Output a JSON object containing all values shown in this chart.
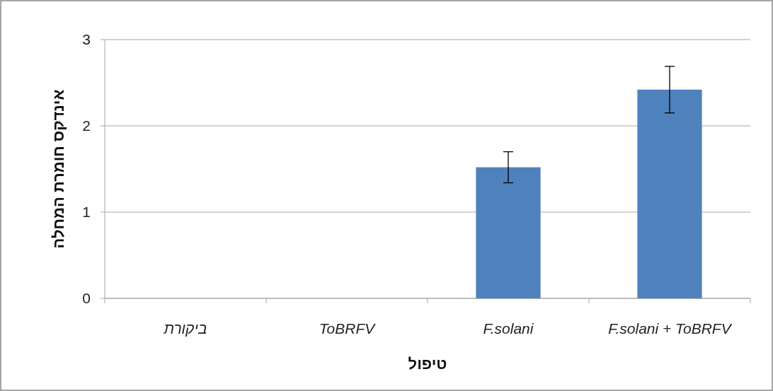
{
  "chart_data": {
    "type": "bar",
    "xlabel": "טיפול",
    "ylabel": "אינדקס חומרת המחלה",
    "categories": [
      "ביקורת",
      "ToBRFV",
      "F.solani",
      "F.solani + ToBRFV"
    ],
    "values": [
      0,
      0,
      1.52,
      2.42
    ],
    "errors": [
      null,
      null,
      0.18,
      0.27
    ],
    "color": "#4f81bd",
    "ylim": [
      0,
      3
    ],
    "yticks": [
      0,
      1,
      2,
      3
    ],
    "grid": "y"
  }
}
